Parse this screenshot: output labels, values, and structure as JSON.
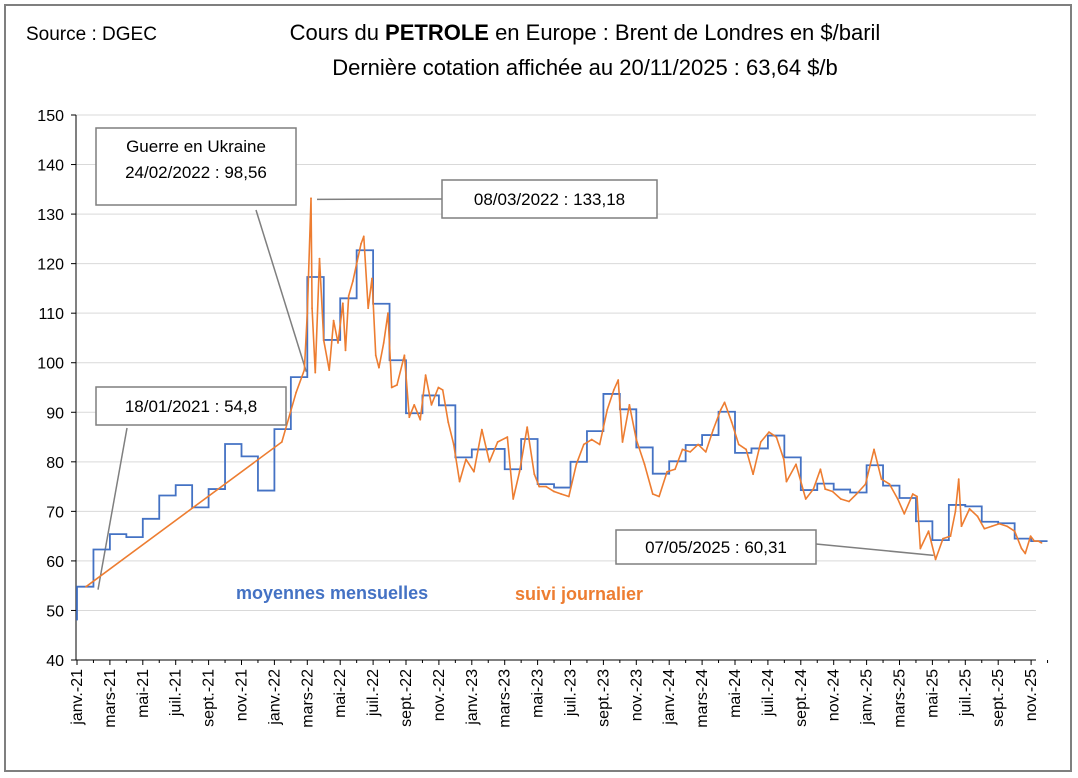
{
  "header": {
    "source": "Source : DGEC",
    "title_pre": "Cours du ",
    "title_bold": "PETROLE",
    "title_post": " en Europe : Brent de Londres en $/baril",
    "subtitle": "Dernière cotation affichée au 20/11/2025 : 63,64 $/b"
  },
  "colors": {
    "monthly": "#4472c4",
    "daily": "#ed7d31",
    "grid": "#d9d9d9",
    "frame": "#7f7f7f"
  },
  "chart_data": {
    "type": "line",
    "ylim": [
      40,
      150
    ],
    "yticks": [
      40,
      50,
      60,
      70,
      80,
      90,
      100,
      110,
      120,
      130,
      140,
      150
    ],
    "grid": true,
    "x_start": "2021-01",
    "xtick_labels": [
      "janv.-21",
      "mars-21",
      "mai-21",
      "juil.-21",
      "sept.-21",
      "nov.-21",
      "janv.-22",
      "mars-22",
      "mai-22",
      "juil.-22",
      "sept.-22",
      "nov.-22",
      "janv.-23",
      "mars-23",
      "mai-23",
      "juil.-23",
      "sept.-23",
      "nov.-23",
      "janv.-24",
      "mars-24",
      "mai-24",
      "juil.-24",
      "sept.-24",
      "nov.-24",
      "janv.-25",
      "mars-25",
      "mai-25",
      "juil.-25",
      "sept.-25",
      "nov.-25"
    ],
    "series": [
      {
        "name": "moyennes mensuelles",
        "style": "step",
        "months": [
          "2021-01",
          "2021-02",
          "2021-03",
          "2021-04",
          "2021-05",
          "2021-06",
          "2021-07",
          "2021-08",
          "2021-09",
          "2021-10",
          "2021-11",
          "2021-12",
          "2022-01",
          "2022-02",
          "2022-03",
          "2022-04",
          "2022-05",
          "2022-06",
          "2022-07",
          "2022-08",
          "2022-09",
          "2022-10",
          "2022-11",
          "2022-12",
          "2023-01",
          "2023-02",
          "2023-03",
          "2023-04",
          "2023-05",
          "2023-06",
          "2023-07",
          "2023-08",
          "2023-09",
          "2023-10",
          "2023-11",
          "2023-12",
          "2024-01",
          "2024-02",
          "2024-03",
          "2024-04",
          "2024-05",
          "2024-06",
          "2024-07",
          "2024-08",
          "2024-09",
          "2024-10",
          "2024-11",
          "2024-12",
          "2025-01",
          "2025-02",
          "2025-03",
          "2025-04",
          "2025-05",
          "2025-06",
          "2025-07",
          "2025-08",
          "2025-09",
          "2025-10",
          "2025-11"
        ],
        "values": [
          54.8,
          62.3,
          65.4,
          64.8,
          68.5,
          73.2,
          75.3,
          70.8,
          74.5,
          83.6,
          81.1,
          74.2,
          86.6,
          97.1,
          117.3,
          104.6,
          113.0,
          122.7,
          111.9,
          100.5,
          89.8,
          93.4,
          91.4,
          80.9,
          82.5,
          82.6,
          78.5,
          84.6,
          75.5,
          74.8,
          80.0,
          86.2,
          93.7,
          90.6,
          82.9,
          77.6,
          80.1,
          83.4,
          85.4,
          90.1,
          81.8,
          82.7,
          85.3,
          80.9,
          74.3,
          75.6,
          74.4,
          73.8,
          79.3,
          75.2,
          72.7,
          68.0,
          64.2,
          71.3,
          71.0,
          67.9,
          67.6,
          64.5,
          64.0
        ]
      },
      {
        "name": "suivi journalier",
        "style": "line",
        "dates": [
          "2021-01-18",
          "2022-01-15",
          "2022-02-10",
          "2022-02-24",
          "2022-03-01",
          "2022-03-08",
          "2022-03-10",
          "2022-03-16",
          "2022-03-24",
          "2022-04-01",
          "2022-04-11",
          "2022-04-19",
          "2022-04-27",
          "2022-05-06",
          "2022-05-11",
          "2022-05-17",
          "2022-05-25",
          "2022-06-02",
          "2022-06-09",
          "2022-06-14",
          "2022-06-22",
          "2022-06-29",
          "2022-07-06",
          "2022-07-12",
          "2022-07-21",
          "2022-07-29",
          "2022-08-05",
          "2022-08-15",
          "2022-08-29",
          "2022-09-07",
          "2022-09-16",
          "2022-09-27",
          "2022-10-07",
          "2022-10-18",
          "2022-10-31",
          "2022-11-08",
          "2022-11-18",
          "2022-11-28",
          "2022-12-09",
          "2022-12-21",
          "2023-01-05",
          "2023-01-20",
          "2023-02-03",
          "2023-02-17",
          "2023-03-06",
          "2023-03-17",
          "2023-03-29",
          "2023-04-12",
          "2023-04-25",
          "2023-05-04",
          "2023-05-17",
          "2023-06-01",
          "2023-06-14",
          "2023-06-28",
          "2023-07-12",
          "2023-07-26",
          "2023-08-10",
          "2023-08-25",
          "2023-09-08",
          "2023-09-20",
          "2023-09-28",
          "2023-10-06",
          "2023-10-19",
          "2023-11-01",
          "2023-11-16",
          "2023-12-01",
          "2023-12-13",
          "2023-12-28",
          "2024-01-12",
          "2024-01-26",
          "2024-02-09",
          "2024-02-23",
          "2024-03-08",
          "2024-03-22",
          "2024-04-05",
          "2024-04-12",
          "2024-04-25",
          "2024-05-08",
          "2024-05-22",
          "2024-06-04",
          "2024-06-18",
          "2024-07-03",
          "2024-07-17",
          "2024-07-31",
          "2024-08-05",
          "2024-08-23",
          "2024-09-10",
          "2024-09-24",
          "2024-10-07",
          "2024-10-16",
          "2024-10-30",
          "2024-11-14",
          "2024-11-29",
          "2024-12-13",
          "2024-12-30",
          "2025-01-15",
          "2025-01-29",
          "2025-02-12",
          "2025-02-26",
          "2025-03-10",
          "2025-03-26",
          "2025-04-03",
          "2025-04-09",
          "2025-04-24",
          "2025-05-07",
          "2025-05-21",
          "2025-06-04",
          "2025-06-13",
          "2025-06-19",
          "2025-06-24",
          "2025-07-09",
          "2025-07-24",
          "2025-08-06",
          "2025-08-20",
          "2025-09-03",
          "2025-09-17",
          "2025-10-01",
          "2025-10-14",
          "2025-10-21",
          "2025-10-31",
          "2025-11-07",
          "2025-11-14",
          "2025-11-20"
        ],
        "values": [
          54.8,
          84.0,
          94.0,
          98.56,
          110.0,
          133.18,
          111.0,
          98.0,
          121.0,
          104.5,
          98.5,
          108.5,
          104.0,
          112.0,
          102.5,
          113.5,
          116.5,
          120.5,
          124.0,
          125.5,
          111.0,
          117.0,
          101.5,
          99.0,
          104.0,
          110.0,
          95.0,
          95.5,
          101.5,
          89.0,
          91.5,
          88.5,
          97.5,
          91.5,
          95.0,
          94.5,
          88.0,
          83.5,
          76.0,
          80.5,
          78.0,
          86.5,
          80.0,
          84.0,
          85.0,
          72.5,
          78.0,
          87.0,
          77.5,
          75.0,
          75.0,
          74.0,
          73.5,
          73.0,
          79.5,
          83.5,
          84.5,
          83.5,
          90.5,
          94.5,
          96.5,
          84.0,
          91.5,
          84.5,
          79.5,
          73.5,
          73.0,
          78.0,
          78.5,
          82.5,
          82.0,
          83.5,
          82.0,
          86.5,
          90.5,
          92.0,
          88.0,
          83.5,
          82.5,
          77.5,
          84.0,
          86.0,
          85.0,
          80.5,
          76.0,
          79.5,
          72.5,
          74.5,
          78.5,
          74.5,
          74.0,
          72.5,
          72.0,
          73.5,
          75.5,
          82.5,
          76.5,
          75.5,
          72.5,
          69.5,
          73.5,
          73.0,
          62.5,
          66.0,
          60.31,
          64.5,
          65.0,
          70.0,
          76.5,
          67.0,
          70.5,
          69.0,
          66.5,
          67.0,
          67.5,
          67.0,
          66.0,
          62.5,
          61.5,
          65.0,
          64.0,
          64.0,
          63.64
        ]
      }
    ],
    "series_labels": {
      "monthly": "moyennes mensuelles",
      "daily": "suivi journalier"
    },
    "annotations": [
      {
        "text": "18/01/2021 : 54,8",
        "date": "2021-01-18",
        "value": 54.8
      },
      {
        "text_line1": "Guerre en Ukraine",
        "text_line2": "24/02/2022 : 98,56",
        "date": "2022-02-24",
        "value": 98.56
      },
      {
        "text": "08/03/2022 : 133,18",
        "date": "2022-03-08",
        "value": 133.18
      },
      {
        "text": "07/05/2025 : 60,31",
        "date": "2025-05-07",
        "value": 60.31
      }
    ]
  }
}
